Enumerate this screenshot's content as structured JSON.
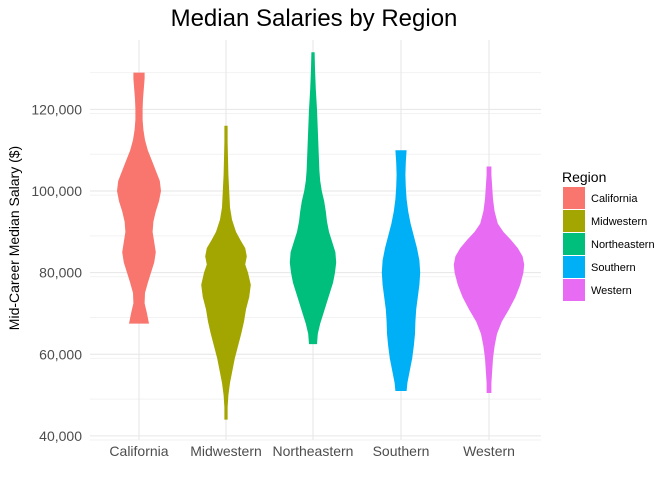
{
  "chart_data": {
    "type": "violin",
    "title": "Median Salaries by Region",
    "xlabel": "",
    "ylabel": "Mid-Career Median Salary ($)",
    "ylim": [
      39000,
      137000
    ],
    "y_ticks": [
      40000,
      60000,
      80000,
      100000,
      120000
    ],
    "y_tick_labels": [
      "40,000",
      "60,000",
      "80,000",
      "100,000",
      "120,000"
    ],
    "grid": true,
    "legend": {
      "title": "Region",
      "position": "right",
      "entries": [
        "California",
        "Midwestern",
        "Northeastern",
        "Southern",
        "Western"
      ]
    },
    "categories": [
      "California",
      "Midwestern",
      "Northeastern",
      "Southern",
      "Western"
    ],
    "series": [
      {
        "name": "California",
        "color": "#F8766D",
        "min": 67500,
        "max": 129000,
        "profile": [
          [
            67500,
            0.25
          ],
          [
            70000,
            0.2
          ],
          [
            72500,
            0.14
          ],
          [
            75000,
            0.15
          ],
          [
            77500,
            0.22
          ],
          [
            80000,
            0.3
          ],
          [
            82500,
            0.38
          ],
          [
            85000,
            0.42
          ],
          [
            87500,
            0.38
          ],
          [
            90000,
            0.34
          ],
          [
            92500,
            0.36
          ],
          [
            95000,
            0.42
          ],
          [
            97500,
            0.5
          ],
          [
            100000,
            0.55
          ],
          [
            102500,
            0.52
          ],
          [
            105000,
            0.42
          ],
          [
            107500,
            0.32
          ],
          [
            110000,
            0.22
          ],
          [
            112500,
            0.15
          ],
          [
            115000,
            0.11
          ],
          [
            117500,
            0.09
          ],
          [
            120000,
            0.09
          ],
          [
            122500,
            0.1
          ],
          [
            125000,
            0.12
          ],
          [
            127500,
            0.14
          ],
          [
            129000,
            0.14
          ]
        ]
      },
      {
        "name": "Midwestern",
        "color": "#A3A500",
        "min": 44000,
        "max": 116000,
        "profile": [
          [
            44000,
            0.04
          ],
          [
            47000,
            0.04
          ],
          [
            50000,
            0.06
          ],
          [
            53000,
            0.1
          ],
          [
            56000,
            0.16
          ],
          [
            59000,
            0.22
          ],
          [
            62000,
            0.3
          ],
          [
            65000,
            0.38
          ],
          [
            68000,
            0.45
          ],
          [
            71000,
            0.5
          ],
          [
            74000,
            0.58
          ],
          [
            77000,
            0.62
          ],
          [
            80000,
            0.55
          ],
          [
            82000,
            0.48
          ],
          [
            84000,
            0.52
          ],
          [
            86000,
            0.48
          ],
          [
            88000,
            0.36
          ],
          [
            90000,
            0.25
          ],
          [
            93000,
            0.15
          ],
          [
            96000,
            0.1
          ],
          [
            100000,
            0.08
          ],
          [
            104000,
            0.06
          ],
          [
            108000,
            0.05
          ],
          [
            112000,
            0.04
          ],
          [
            116000,
            0.04
          ]
        ]
      },
      {
        "name": "Northeastern",
        "color": "#00BF7D",
        "min": 62500,
        "max": 134000,
        "profile": [
          [
            62500,
            0.1
          ],
          [
            65000,
            0.12
          ],
          [
            67500,
            0.18
          ],
          [
            70000,
            0.26
          ],
          [
            72500,
            0.34
          ],
          [
            75000,
            0.42
          ],
          [
            77500,
            0.5
          ],
          [
            80000,
            0.55
          ],
          [
            82500,
            0.58
          ],
          [
            85000,
            0.56
          ],
          [
            87500,
            0.48
          ],
          [
            90000,
            0.4
          ],
          [
            92500,
            0.35
          ],
          [
            95000,
            0.32
          ],
          [
            97500,
            0.28
          ],
          [
            100000,
            0.22
          ],
          [
            102500,
            0.18
          ],
          [
            105000,
            0.16
          ],
          [
            107500,
            0.15
          ],
          [
            110000,
            0.14
          ],
          [
            115000,
            0.12
          ],
          [
            120000,
            0.1
          ],
          [
            125000,
            0.07
          ],
          [
            130000,
            0.05
          ],
          [
            134000,
            0.04
          ]
        ]
      },
      {
        "name": "Southern",
        "color": "#00B0F6",
        "min": 51000,
        "max": 110000,
        "profile": [
          [
            51000,
            0.14
          ],
          [
            53000,
            0.16
          ],
          [
            56000,
            0.22
          ],
          [
            59000,
            0.28
          ],
          [
            62000,
            0.32
          ],
          [
            65000,
            0.35
          ],
          [
            68000,
            0.36
          ],
          [
            71000,
            0.38
          ],
          [
            74000,
            0.42
          ],
          [
            77000,
            0.46
          ],
          [
            80000,
            0.48
          ],
          [
            83000,
            0.46
          ],
          [
            86000,
            0.4
          ],
          [
            89000,
            0.32
          ],
          [
            92000,
            0.24
          ],
          [
            95000,
            0.18
          ],
          [
            98000,
            0.14
          ],
          [
            101000,
            0.12
          ],
          [
            104000,
            0.11
          ],
          [
            107000,
            0.12
          ],
          [
            110000,
            0.14
          ]
        ]
      },
      {
        "name": "Western",
        "color": "#E76BF3",
        "min": 50500,
        "max": 106000,
        "profile": [
          [
            50500,
            0.06
          ],
          [
            53000,
            0.06
          ],
          [
            56000,
            0.08
          ],
          [
            59000,
            0.1
          ],
          [
            62000,
            0.14
          ],
          [
            65000,
            0.2
          ],
          [
            68000,
            0.32
          ],
          [
            71000,
            0.5
          ],
          [
            74000,
            0.66
          ],
          [
            77000,
            0.78
          ],
          [
            80000,
            0.86
          ],
          [
            82000,
            0.88
          ],
          [
            84000,
            0.84
          ],
          [
            86000,
            0.72
          ],
          [
            88000,
            0.55
          ],
          [
            90000,
            0.36
          ],
          [
            92000,
            0.22
          ],
          [
            95000,
            0.14
          ],
          [
            98000,
            0.1
          ],
          [
            101000,
            0.08
          ],
          [
            104000,
            0.06
          ],
          [
            106000,
            0.06
          ]
        ]
      }
    ]
  }
}
